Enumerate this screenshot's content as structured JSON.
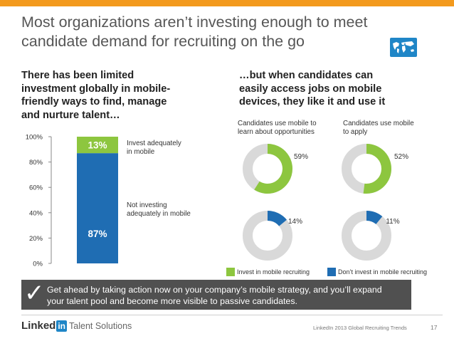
{
  "title": {
    "line1": "Most organizations aren’t investing enough to meet",
    "line2": "candidate demand for recruiting on the go"
  },
  "left_heading": {
    "line1": "There has been limited",
    "line2": "investment globally in mobile-",
    "line3": "friendly ways to find, manage",
    "line4": "and nurture talent…"
  },
  "right_heading": {
    "line1": "…but when candidates can",
    "line2": "easily access jobs on mobile",
    "line3": "devices, they like it and use it"
  },
  "bar_annotations": {
    "invest": {
      "line1": "Invest adequately",
      "line2": "in mobile"
    },
    "not_invest": {
      "line1": "Not investing",
      "line2": "adequately in mobile"
    }
  },
  "donut_labels": {
    "left": {
      "line1": "Candidates use mobile to",
      "line2": "learn about opportunities"
    },
    "right": {
      "line1": "Candidates use mobile",
      "line2": "to apply"
    }
  },
  "chart_data": [
    {
      "type": "bar",
      "stacked": true,
      "title": "",
      "categories": [
        ""
      ],
      "series": [
        {
          "name": "Not investing adequately in mobile",
          "values": [
            87
          ],
          "label": "87%",
          "color": "#1f6db3"
        },
        {
          "name": "Invest adequately in mobile",
          "values": [
            13
          ],
          "label": "13%",
          "color": "#8dc63f"
        }
      ],
      "ylim": [
        0,
        100
      ],
      "yticks": [
        "0%",
        "20%",
        "40%",
        "60%",
        "80%",
        "100%"
      ],
      "ytick_values": [
        0,
        20,
        40,
        60,
        80,
        100
      ]
    },
    {
      "type": "pie",
      "donut": true,
      "panels": [
        {
          "panel": "Candidates use mobile to learn about opportunities",
          "series": "Invest in mobile recruiting",
          "value": 59,
          "label": "59%",
          "color": "#8dc63f"
        },
        {
          "panel": "Candidates use mobile to apply",
          "series": "Invest in mobile recruiting",
          "value": 52,
          "label": "52%",
          "color": "#8dc63f"
        },
        {
          "panel": "Candidates use mobile to learn about opportunities",
          "series": "Don’t invest in mobile recruiting",
          "value": 14,
          "label": "14%",
          "color": "#1f6db3"
        },
        {
          "panel": "Candidates use mobile to apply",
          "series": "Don’t invest in mobile recruiting",
          "value": 11,
          "label": "11%",
          "color": "#1f6db3"
        }
      ],
      "remainder_color": "#d9d9d9",
      "legend": [
        {
          "name": "Invest in mobile recruiting",
          "color": "#8dc63f"
        },
        {
          "name": "Don’t invest in mobile recruiting",
          "color": "#1f6db3"
        }
      ]
    }
  ],
  "banner": {
    "line1": "Get ahead by taking action now on your company’s mobile strategy, and you’ll expand",
    "line2": "your talent pool and become more visible to passive candidates."
  },
  "footer": {
    "brand_linked": "Linked",
    "brand_in": "in",
    "brand_product": "Talent Solutions",
    "source": "LinkedIn 2013 Global Recruiting Trends",
    "page": "17"
  },
  "colors": {
    "accent_orange": "#f39a1d",
    "green": "#8dc63f",
    "blue": "#1f6db3",
    "gray": "#d9d9d9",
    "banner": "#505050"
  },
  "icons": {
    "map": "world-map-icon",
    "check": "checkmark-icon"
  }
}
